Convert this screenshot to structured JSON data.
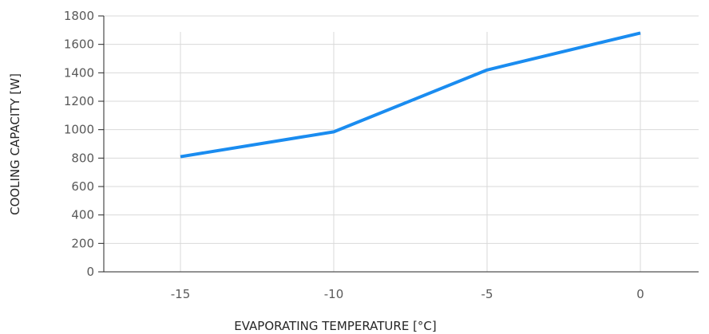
{
  "chart_data": {
    "type": "line",
    "x": [
      -15,
      -10,
      -5,
      0
    ],
    "series": [
      {
        "values": [
          810,
          985,
          1420,
          1680
        ],
        "color": "#1a8cf0"
      }
    ],
    "xlabel": "EVAPORATING TEMPERATURE [°C]",
    "ylabel": "COOLING CAPACITY [W]",
    "xlim": [
      -17.5,
      1.9
    ],
    "ylim": [
      0,
      1800
    ],
    "xticks": [
      -15,
      -10,
      -5,
      0
    ],
    "xtick_labels": [
      "-15",
      "-10",
      "-5",
      "0"
    ],
    "yticks": [
      0,
      200,
      400,
      600,
      800,
      1000,
      1200,
      1400,
      1600,
      1800
    ],
    "ytick_labels": [
      "0",
      "200",
      "400",
      "600",
      "800",
      "1000",
      "1200",
      "1400",
      "1600",
      "1800"
    ],
    "grid": true,
    "legend": "none"
  }
}
